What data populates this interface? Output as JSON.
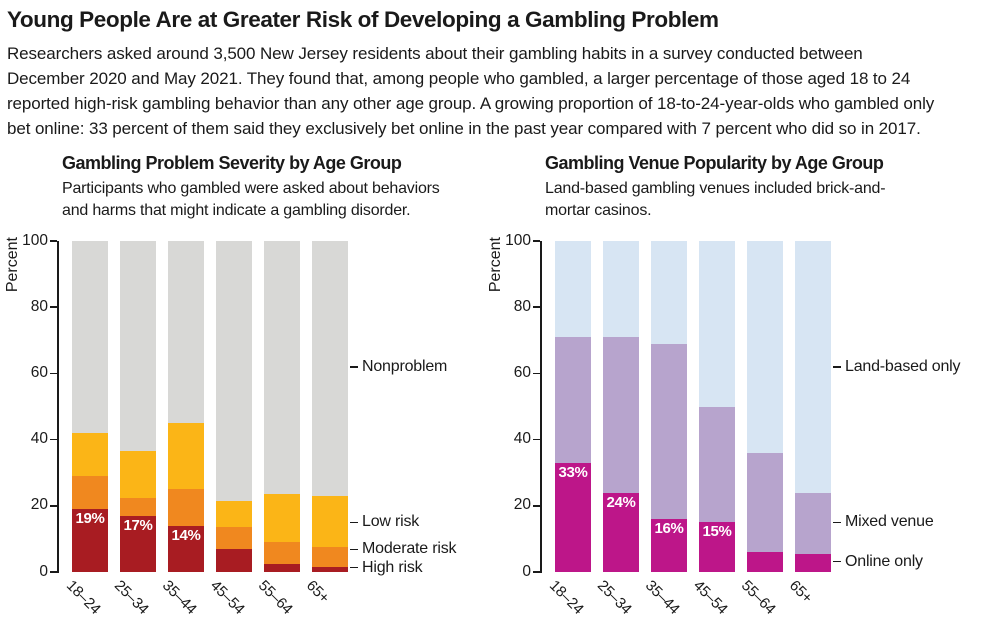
{
  "page": {
    "title": "Young People Are at Greater Risk of Developing a Gambling Problem",
    "intro_lines": [
      "Researchers asked around 3,500 New Jersey residents about their gambling habits in a survey conducted between",
      "December 2020 and May 2021. They found that, among people who gambled, a larger percentage of those aged 18 to 24",
      "reported high-risk gambling behavior than any other age group. A growing proportion of 18-to-24-year-olds who gambled only",
      "bet online: 33 percent of them said they exclusively bet online in the past year compared with 7 percent who did so in 2017."
    ]
  },
  "colors": {
    "text": "#1a1a1a",
    "high_risk_red": "#a81c22",
    "moderate_orange": "#f0881f",
    "low_amber": "#fbb517",
    "nonproblem_gray": "#d8d8d6",
    "online_magenta": "#bd1689",
    "mixed_purple": "#b7a4cd",
    "landbased_blue": "#d7e5f3"
  },
  "chart_data": [
    {
      "type": "bar",
      "subtype": "stacked-100-percent",
      "title": "Gambling Problem Severity by Age Group",
      "subtitle_lines": [
        "Participants who gambled were asked about behaviors",
        "and harms that might indicate a gambling disorder."
      ],
      "ylabel": "Percent",
      "ylim": [
        0,
        100
      ],
      "yticks": [
        0,
        20,
        40,
        60,
        80,
        100
      ],
      "grid": false,
      "legend_position": "right-annotations",
      "categories": [
        "18–24",
        "25–34",
        "35–44",
        "45–54",
        "55–64",
        "65+"
      ],
      "series": [
        {
          "name": "High risk",
          "color": "#a81c22",
          "values": [
            19,
            17,
            14,
            7,
            2.5,
            1.5
          ],
          "value_labels": [
            "19%",
            "17%",
            "14%",
            "",
            "",
            ""
          ]
        },
        {
          "name": "Moderate risk",
          "color": "#f0881f",
          "values": [
            10,
            5.5,
            11,
            6.5,
            6.5,
            6
          ]
        },
        {
          "name": "Low risk",
          "color": "#fbb517",
          "values": [
            13,
            14,
            20,
            8,
            14.5,
            15.5
          ]
        },
        {
          "name": "Nonproblem",
          "color": "#d8d8d6",
          "values": [
            58,
            63.5,
            55,
            78.5,
            76.5,
            77
          ]
        }
      ],
      "segment_annotations": [
        {
          "text": "Nonproblem",
          "at_percent": 62
        },
        {
          "text": "Low risk",
          "at_percent": 15
        },
        {
          "text": "Moderate risk",
          "at_percent": 6.8
        },
        {
          "text": "High risk",
          "at_percent": 1.3
        }
      ]
    },
    {
      "type": "bar",
      "subtype": "stacked-100-percent",
      "title": "Gambling Venue Popularity by Age Group",
      "subtitle_lines": [
        "Land-based gambling venues included brick-and-",
        "mortar casinos."
      ],
      "ylabel": "Percent",
      "ylim": [
        0,
        100
      ],
      "yticks": [
        0,
        20,
        40,
        60,
        80,
        100
      ],
      "grid": false,
      "legend_position": "right-annotations",
      "categories": [
        "18–24",
        "25–34",
        "35–44",
        "45–54",
        "55–64",
        "65+"
      ],
      "series": [
        {
          "name": "Online only",
          "color": "#bd1689",
          "values": [
            33,
            24,
            16,
            15,
            6,
            5.5
          ],
          "value_labels": [
            "33%",
            "24%",
            "16%",
            "15%",
            "",
            ""
          ]
        },
        {
          "name": "Mixed venue",
          "color": "#b7a4cd",
          "values": [
            38,
            47,
            53,
            35,
            30,
            18.5
          ]
        },
        {
          "name": "Land-based only",
          "color": "#d7e5f3",
          "values": [
            29,
            29,
            31,
            50,
            64,
            76
          ]
        }
      ],
      "segment_annotations": [
        {
          "text": "Land-based only",
          "at_percent": 62
        },
        {
          "text": "Mixed venue",
          "at_percent": 15
        },
        {
          "text": "Online only",
          "at_percent": 3.1
        }
      ]
    }
  ]
}
